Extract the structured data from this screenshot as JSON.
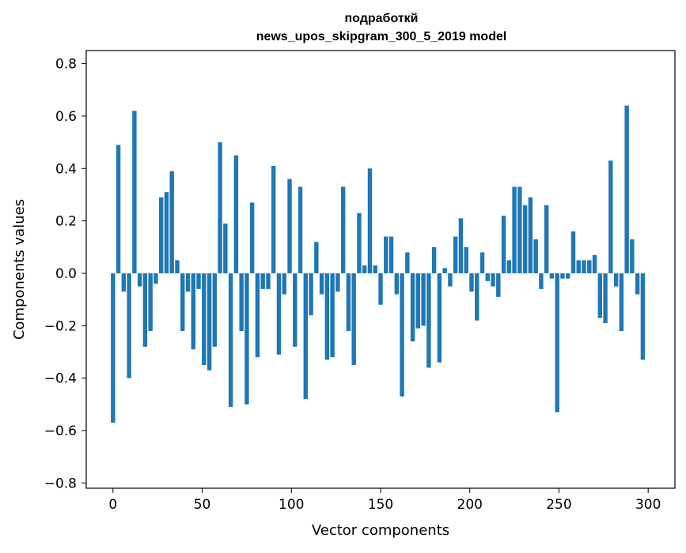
{
  "chart_data": {
    "type": "bar",
    "title_line1": "подработкй",
    "title_line2": "news_upos_skipgram_300_5_2019 model",
    "xlabel": "Vector components",
    "ylabel": "Components values",
    "xlim": [
      -15,
      315
    ],
    "ylim": [
      -0.82,
      0.85
    ],
    "xticks": [
      0,
      50,
      100,
      150,
      200,
      250,
      300
    ],
    "xtick_labels": [
      "0",
      "50",
      "100",
      "150",
      "200",
      "250",
      "300"
    ],
    "yticks": [
      -0.8,
      -0.6,
      -0.4,
      -0.2,
      0.0,
      0.2,
      0.4,
      0.6,
      0.8
    ],
    "ytick_labels": [
      "−0.8",
      "−0.6",
      "−0.4",
      "−0.2",
      "0.0",
      "0.2",
      "0.4",
      "0.6",
      "0.8"
    ],
    "bar_color": "#1f77b4",
    "grid": false,
    "values": [
      -0.57,
      0.49,
      -0.07,
      -0.4,
      0.62,
      -0.05,
      -0.28,
      -0.22,
      -0.04,
      0.29,
      0.31,
      0.39,
      0.05,
      -0.22,
      -0.07,
      -0.29,
      -0.06,
      -0.35,
      -0.37,
      -0.28,
      0.5,
      0.19,
      -0.51,
      0.45,
      -0.22,
      -0.5,
      0.27,
      -0.32,
      -0.06,
      -0.06,
      0.41,
      -0.31,
      -0.08,
      0.36,
      -0.28,
      0.33,
      -0.48,
      -0.16,
      0.12,
      -0.08,
      -0.33,
      -0.32,
      -0.07,
      0.33,
      -0.22,
      -0.35,
      0.23,
      0.03,
      0.4,
      0.03,
      -0.12,
      0.14,
      0.14,
      -0.08,
      -0.47,
      0.08,
      -0.26,
      -0.21,
      -0.2,
      -0.36,
      0.1,
      -0.34,
      0.02,
      -0.05,
      0.14,
      0.21,
      0.1,
      -0.07,
      -0.18,
      0.08,
      -0.03,
      -0.05,
      -0.09,
      0.22,
      0.05,
      0.33,
      0.33,
      0.26,
      0.29,
      0.13,
      -0.06,
      0.26,
      -0.02,
      -0.53,
      -0.02,
      -0.02,
      0.16,
      0.05,
      0.05,
      0.05,
      0.07,
      -0.17,
      -0.19,
      0.43,
      -0.05,
      -0.22,
      0.64,
      0.13,
      -0.08,
      -0.33
    ]
  }
}
